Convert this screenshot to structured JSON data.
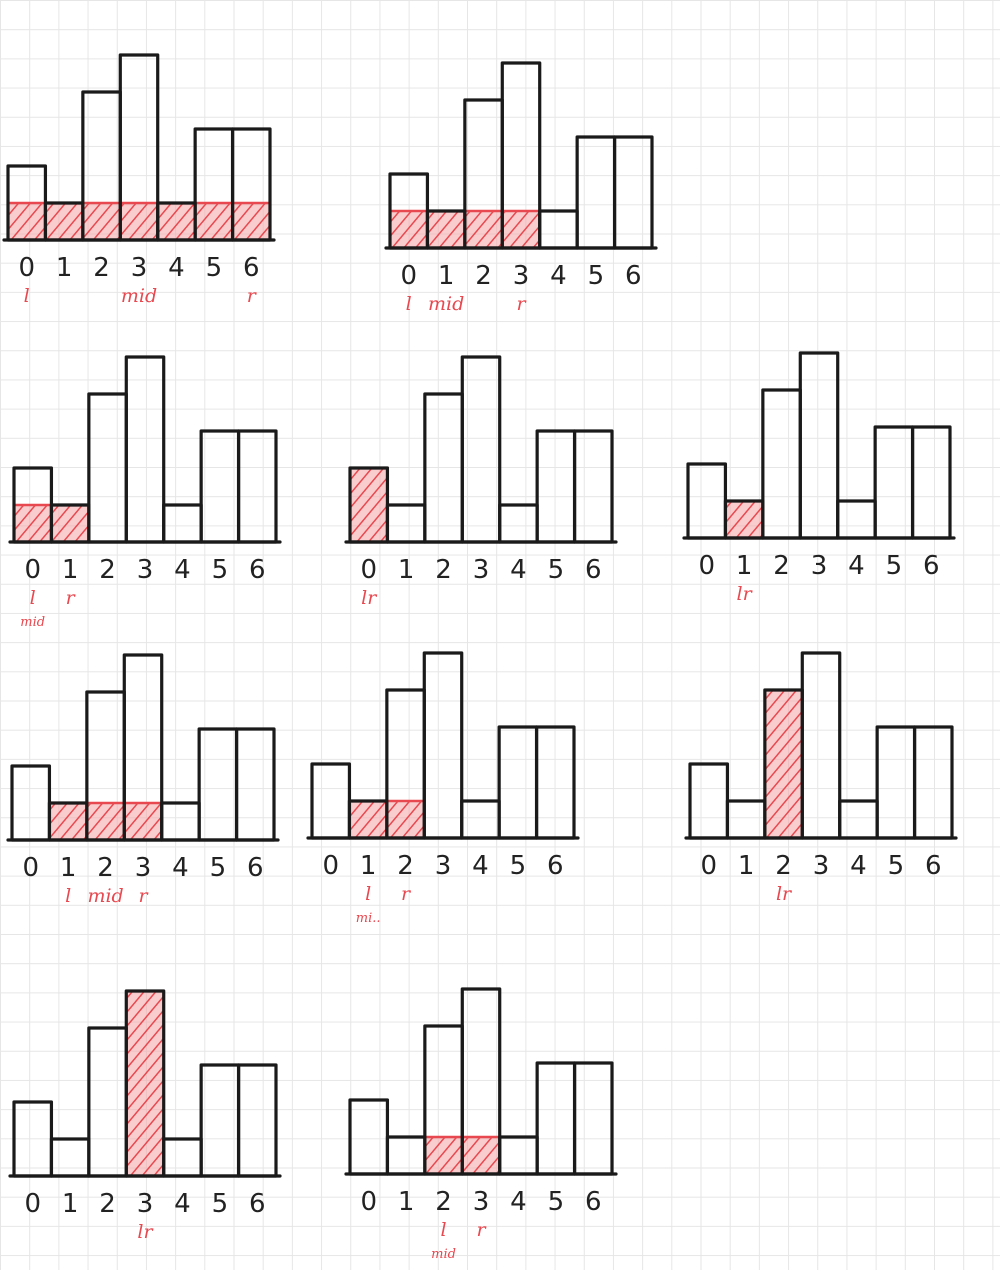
{
  "colors": {
    "ink": "#1a1a1a",
    "highlight": "#e8484f",
    "highlight_fill": "#f4a3a6",
    "grid": "#e6e6e6",
    "background": "#ffffff"
  },
  "bar_heights": [
    2,
    1,
    4,
    5,
    1,
    3,
    3
  ],
  "index_labels": [
    "0",
    "1",
    "2",
    "3",
    "4",
    "5",
    "6"
  ],
  "panels": [
    {
      "highlight": {
        "from": 0,
        "to": 6,
        "height": 1
      },
      "pointers": [
        {
          "text": "l",
          "at": 0
        },
        {
          "text": "mid",
          "at": 3
        },
        {
          "text": "r",
          "at": 6
        }
      ]
    },
    {
      "highlight": {
        "from": 0,
        "to": 3,
        "height": 1
      },
      "pointers": [
        {
          "text": "l",
          "at": 0
        },
        {
          "text": "mid",
          "at": 1
        },
        {
          "text": "r",
          "at": 3
        }
      ]
    },
    {
      "highlight": {
        "from": 0,
        "to": 1,
        "height": 1
      },
      "pointers": [
        {
          "text": "l",
          "at": 0
        },
        {
          "text": "r",
          "at": 1
        },
        {
          "text": "mid",
          "at": 0,
          "row": 2
        }
      ]
    },
    {
      "highlight": {
        "from": 0,
        "to": 0,
        "height": 2
      },
      "pointers": [
        {
          "text": "lr",
          "at": 0
        }
      ]
    },
    {
      "highlight": {
        "from": 1,
        "to": 1,
        "height": 1
      },
      "pointers": [
        {
          "text": "lr",
          "at": 1
        }
      ]
    },
    {
      "highlight": {
        "from": 1,
        "to": 3,
        "height": 1
      },
      "pointers": [
        {
          "text": "l",
          "at": 1
        },
        {
          "text": "mid",
          "at": 2
        },
        {
          "text": "r",
          "at": 3
        }
      ]
    },
    {
      "highlight": {
        "from": 1,
        "to": 2,
        "height": 1
      },
      "pointers": [
        {
          "text": "l",
          "at": 1
        },
        {
          "text": "r",
          "at": 2
        },
        {
          "text": "mi..",
          "at": 1,
          "row": 2
        }
      ]
    },
    {
      "highlight": {
        "from": 2,
        "to": 2,
        "height": 4
      },
      "pointers": [
        {
          "text": "lr",
          "at": 2
        }
      ]
    },
    {
      "highlight": {
        "from": 3,
        "to": 3,
        "height": 5
      },
      "pointers": [
        {
          "text": "lr",
          "at": 3
        }
      ]
    },
    {
      "highlight": {
        "from": 2,
        "to": 3,
        "height": 1
      },
      "pointers": [
        {
          "text": "l",
          "at": 2
        },
        {
          "text": "r",
          "at": 3
        },
        {
          "text": "mid",
          "at": 2,
          "row": 2
        }
      ]
    }
  ]
}
